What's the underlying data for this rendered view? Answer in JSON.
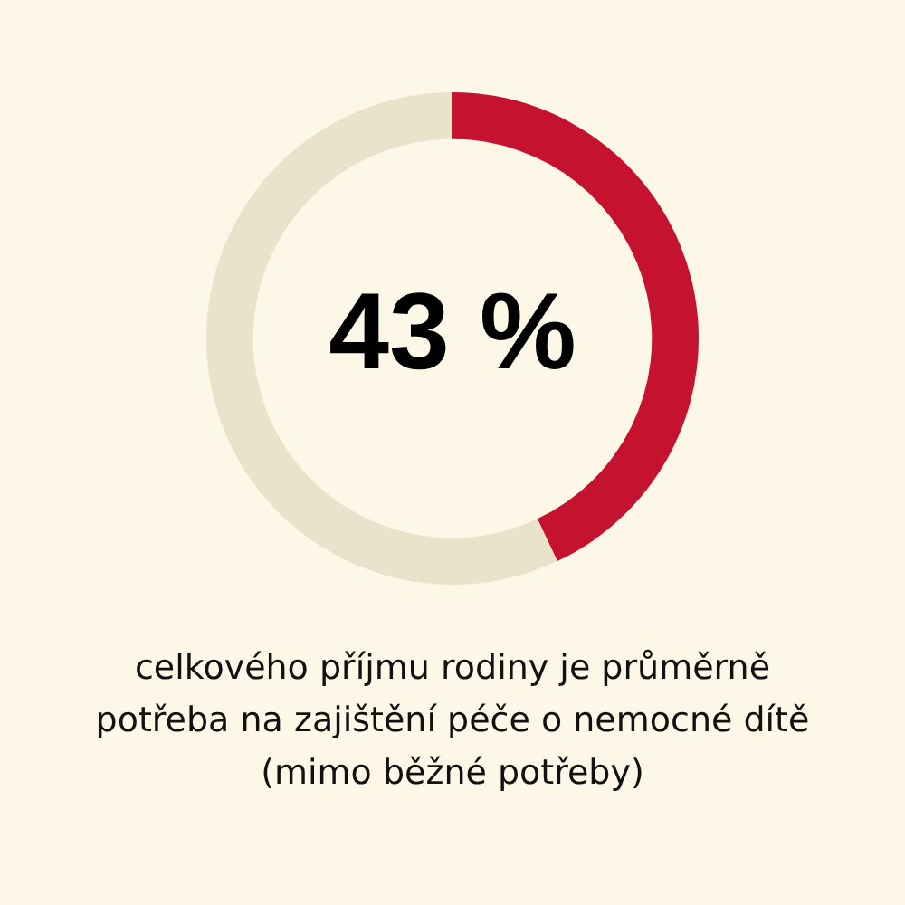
{
  "chart_data": {
    "type": "donut",
    "categories": [
      null,
      null
    ],
    "values": [
      43,
      57
    ],
    "colors": [
      "#c4122f",
      "#e9e3cc"
    ],
    "value_labels": [
      "43 %",
      null
    ],
    "annotations": [
      "celkového příjmu rodiny je průměrně\npotřeba na zajištění péče o nemocné dítě\n(mimo běžné potřeby)"
    ],
    "legend": false
  }
}
